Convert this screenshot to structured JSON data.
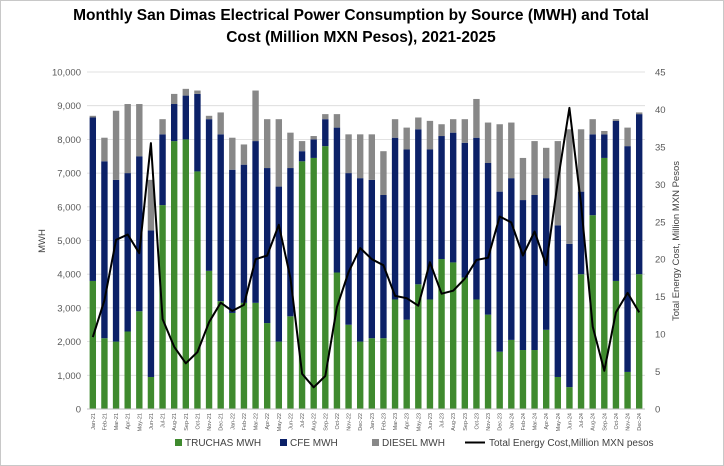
{
  "chart_data": {
    "type": "bar",
    "stacked": true,
    "title_line1": "Monthly San Dimas Electrical Power Consumption by Source (MWH) and Total",
    "title_line2": "Cost (Million MXN Pesos), 2021-2025",
    "ylabel": "MWH",
    "y2label": "Total Energy Cost, Million MXN Pesos",
    "ylim": [
      0,
      10000
    ],
    "y2lim": [
      0,
      45
    ],
    "yticks": [
      "0",
      "1,000",
      "2,000",
      "3,000",
      "4,000",
      "5,000",
      "6,000",
      "7,000",
      "8,000",
      "9,000",
      "10,000"
    ],
    "y2ticks": [
      "0",
      "5",
      "10",
      "15",
      "20",
      "25",
      "30",
      "35",
      "40",
      "45"
    ],
    "legend_position": "bottom",
    "categories": [
      "Jan-21",
      "Feb-21",
      "Mar-21",
      "Apr-21",
      "May-21",
      "Jun-21",
      "Jul-21",
      "Aug-21",
      "Sep-21",
      "Oct-21",
      "Nov-21",
      "Dec-21",
      "Jan-22",
      "Feb-22",
      "Mar-22",
      "Apr-22",
      "May-22",
      "Jun-22",
      "Jul-22",
      "Aug-22",
      "Sep-22",
      "Oct-22",
      "Nov-22",
      "Dec-22",
      "Jan-23",
      "Feb-23",
      "Mar-23",
      "Apr-23",
      "May-23",
      "Jun-23",
      "Jul-23",
      "Aug-23",
      "Sep-23",
      "Oct-23",
      "Nov-23",
      "Dec-23",
      "Jan-24",
      "Feb-24",
      "Mar-24",
      "Apr-24",
      "May-24",
      "Jun-24",
      "Jul-24",
      "Aug-24",
      "Sep-24",
      "Oct-24",
      "Nov-24",
      "Dec-24"
    ],
    "series": [
      {
        "name": "TRUCHAS MWH",
        "color": "#3f8a2e",
        "values": [
          3800,
          2100,
          2000,
          2300,
          2900,
          950,
          6050,
          7950,
          8000,
          7050,
          4100,
          3200,
          2850,
          3150,
          3150,
          2550,
          2000,
          2750,
          7350,
          7450,
          7800,
          4050,
          2500,
          2000,
          2100,
          2100,
          3250,
          2650,
          3700,
          3250,
          4450,
          4350,
          3900,
          3250,
          2800,
          1700,
          2050,
          1750,
          1750,
          2350,
          950,
          650,
          4000,
          5750,
          7450,
          3800,
          1100,
          4000
        ]
      },
      {
        "name": "CFE  MWH",
        "color": "#0c2168",
        "values": [
          4850,
          5250,
          4800,
          4700,
          4600,
          4350,
          2100,
          1100,
          1300,
          2300,
          4500,
          4950,
          4250,
          4100,
          4800,
          4600,
          4600,
          4400,
          300,
          550,
          800,
          4300,
          4500,
          4850,
          4700,
          4250,
          4800,
          5050,
          4600,
          4450,
          3650,
          3850,
          4000,
          4800,
          4500,
          4750,
          4800,
          4450,
          4600,
          4500,
          4500,
          4250,
          2450,
          2400,
          700,
          4750,
          6700,
          4750
        ]
      },
      {
        "name": "DIESEL MWH",
        "color": "#888888",
        "values": [
          50,
          700,
          2050,
          2050,
          1550,
          1500,
          450,
          300,
          200,
          100,
          100,
          650,
          950,
          600,
          1500,
          1450,
          2000,
          1050,
          300,
          100,
          150,
          400,
          1150,
          1300,
          1350,
          1300,
          550,
          650,
          350,
          850,
          350,
          400,
          700,
          1150,
          1200,
          2000,
          1650,
          1250,
          1600,
          900,
          2500,
          3400,
          1850,
          450,
          100,
          50,
          550,
          50
        ]
      }
    ],
    "line": {
      "name": "Total Energy Cost,Million MXN pesos",
      "color": "#000000",
      "values": [
        9.6,
        14.5,
        22.6,
        23.3,
        20.8,
        35.5,
        12,
        8.3,
        6.1,
        7.6,
        11.6,
        14.2,
        13.1,
        13.9,
        20,
        20.5,
        24.6,
        17.5,
        4.7,
        2.9,
        4.4,
        13.6,
        18.3,
        21.5,
        20,
        19.2,
        15.1,
        14.8,
        13.8,
        19.6,
        15.4,
        15.8,
        17.4,
        19.9,
        20.2,
        25.7,
        24.9,
        20.5,
        23.7,
        19.2,
        30.4,
        40.2,
        27.3,
        11,
        5.1,
        12.9,
        15.5,
        12.9
      ]
    }
  }
}
